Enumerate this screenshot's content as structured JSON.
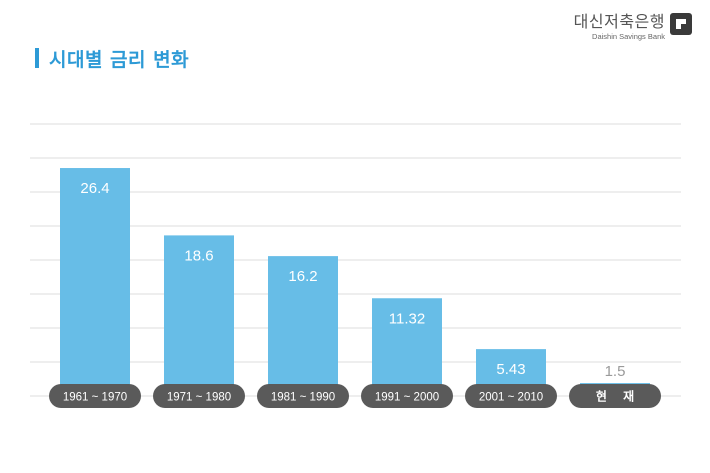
{
  "logo": {
    "name": "대신저축은행",
    "name_en": "Daishin Savings Bank"
  },
  "chart_data": {
    "type": "bar",
    "title": "시대별 금리 변화",
    "categories": [
      "1961 ~ 1970",
      "1971 ~ 1980",
      "1981 ~ 1990",
      "1991 ~ 2000",
      "2001 ~ 2010",
      "현 재"
    ],
    "values": [
      26.4,
      18.6,
      16.2,
      11.32,
      5.43,
      1.5
    ],
    "value_labels": [
      "26.4",
      "18.6",
      "16.2",
      "11.32",
      "5.43",
      "1.5"
    ],
    "xlabel": "",
    "ylabel": "",
    "ylim": [
      0,
      31.5
    ],
    "grid": true,
    "legend": "none",
    "colors": {
      "bar": "#67bde7",
      "category_pill": "#5a5a5a",
      "grid": "#dddddd",
      "title": "#2d9ad6"
    }
  }
}
